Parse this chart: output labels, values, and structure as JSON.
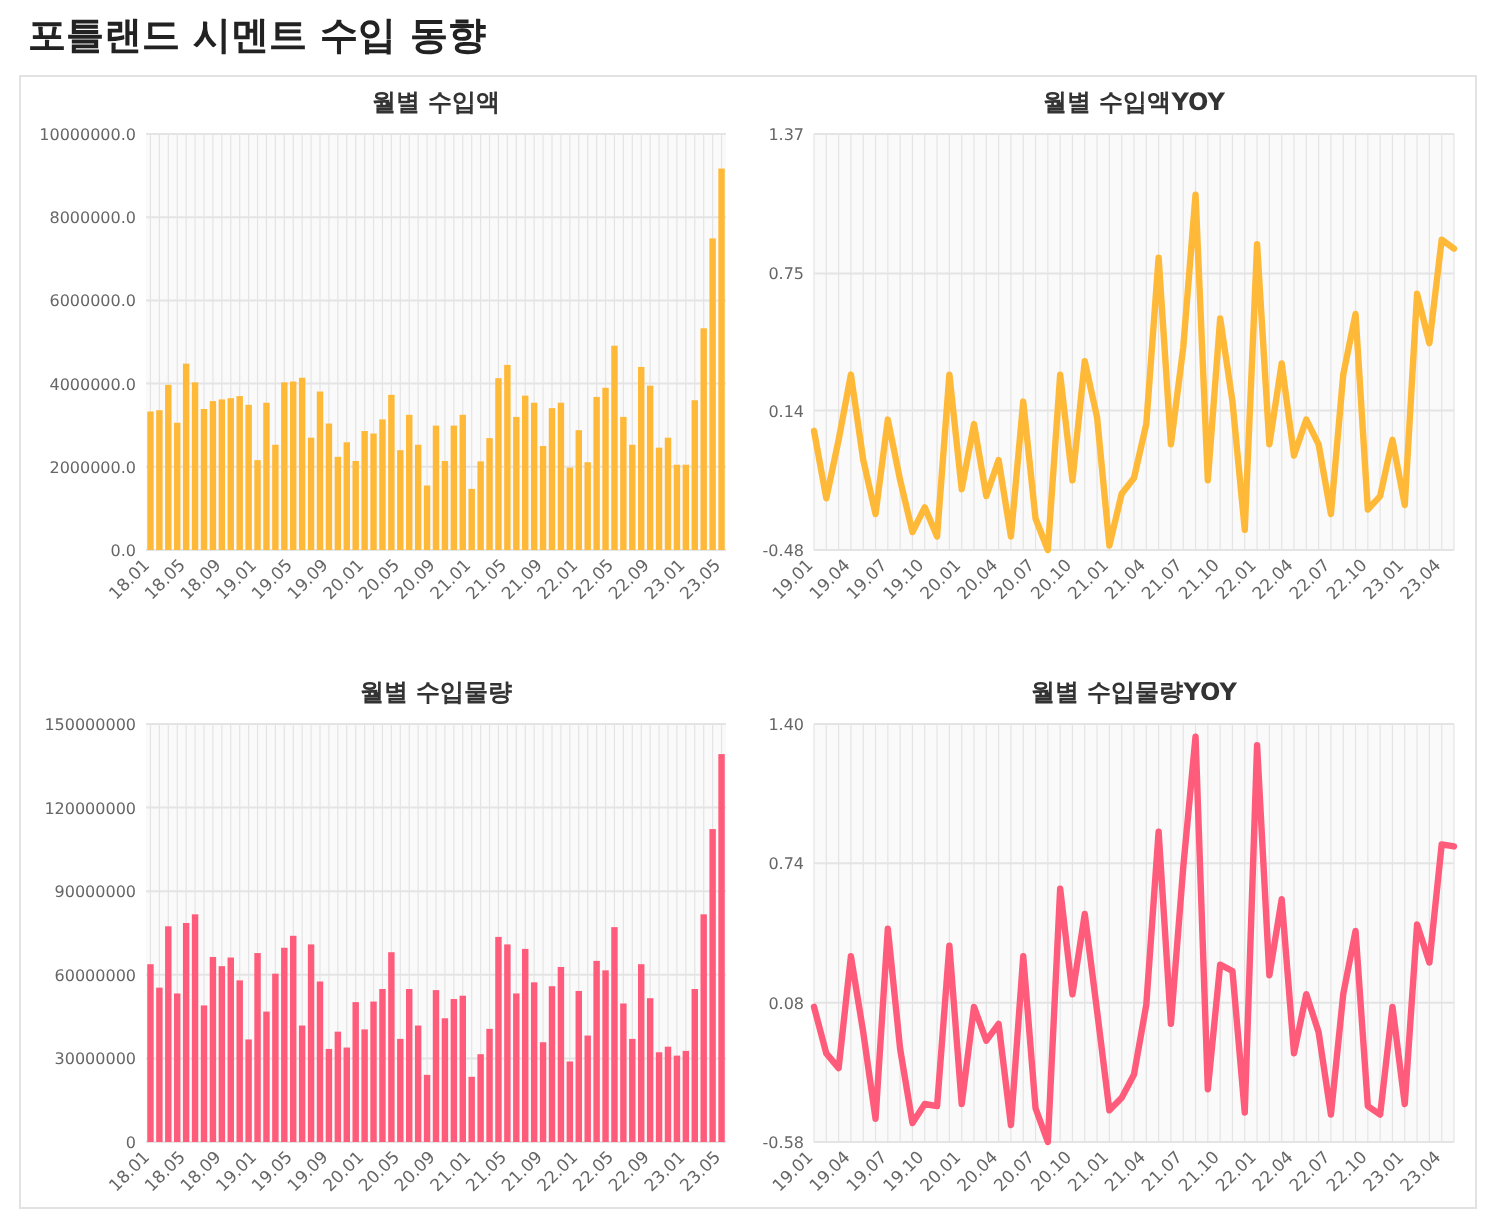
{
  "chart_data": [
    {
      "type": "other",
      "title": "포틀랜드 시멘트 수입 동향"
    },
    {
      "type": "bar",
      "title": "월별 수입액",
      "color": "#ffb939",
      "grid": true,
      "categories": [
        "18.01",
        null,
        null,
        null,
        "18.05",
        null,
        null,
        null,
        "18.09",
        null,
        null,
        null,
        "19.01",
        null,
        null,
        null,
        "19.05",
        null,
        null,
        null,
        "19.09",
        null,
        null,
        null,
        "20.01",
        null,
        null,
        null,
        "20.05",
        null,
        null,
        null,
        "20.09",
        null,
        null,
        null,
        "21.01",
        null,
        null,
        null,
        "21.05",
        null,
        null,
        null,
        "21.09",
        null,
        null,
        null,
        "22.01",
        null,
        null,
        null,
        "22.05",
        null,
        null,
        null,
        "22.09",
        null,
        null,
        null,
        "23.01",
        null,
        null,
        null,
        "23.05"
      ],
      "values": [
        3330000,
        3360000,
        3970000,
        3060000,
        4480000,
        4030000,
        3390000,
        3580000,
        3620000,
        3650000,
        3700000,
        3490000,
        2160000,
        3540000,
        2530000,
        4030000,
        4050000,
        4140000,
        2700000,
        3810000,
        3040000,
        2240000,
        2590000,
        2140000,
        2860000,
        2800000,
        3140000,
        3730000,
        2400000,
        3250000,
        2530000,
        1550000,
        2990000,
        2140000,
        2990000,
        3250000,
        1470000,
        2130000,
        2690000,
        4130000,
        4450000,
        3200000,
        3710000,
        3540000,
        2500000,
        3410000,
        3540000,
        1980000,
        2880000,
        2110000,
        3680000,
        3900000,
        4910000,
        3200000,
        2530000,
        4400000,
        3950000,
        2460000,
        2700000,
        2050000,
        2050000,
        3600000,
        5330000,
        7490000,
        9170000
      ],
      "ylim": [
        0,
        10000000
      ],
      "yticks": [
        {
          "value": 0,
          "label": "0.0"
        },
        {
          "value": 2000000,
          "label": "2000000.0"
        },
        {
          "value": 4000000,
          "label": "4000000.0"
        },
        {
          "value": 6000000,
          "label": "6000000.0"
        },
        {
          "value": 8000000,
          "label": "8000000.0"
        },
        {
          "value": 10000000,
          "label": "10000000.0"
        }
      ]
    },
    {
      "type": "line",
      "title": "월별 수입액YOY",
      "color": "#ffb939",
      "grid": true,
      "categories": [
        "19.01",
        null,
        null,
        "19.04",
        null,
        null,
        "19.07",
        null,
        null,
        "19.10",
        null,
        null,
        "20.01",
        null,
        null,
        "20.04",
        null,
        null,
        "20.07",
        null,
        null,
        "20.10",
        null,
        null,
        "21.01",
        null,
        null,
        "21.04",
        null,
        null,
        "21.07",
        null,
        null,
        "21.10",
        null,
        null,
        "22.01",
        null,
        null,
        "22.04",
        null,
        null,
        "22.07",
        null,
        null,
        "22.10",
        null,
        null,
        "23.01",
        null,
        null,
        "23.04",
        null
      ],
      "values": [
        0.05,
        -0.25,
        0.01,
        0.3,
        -0.08,
        -0.32,
        0.1,
        -0.17,
        -0.4,
        -0.29,
        -0.42,
        0.3,
        -0.21,
        0.08,
        -0.24,
        -0.08,
        -0.42,
        0.18,
        -0.34,
        -0.48,
        0.3,
        -0.17,
        0.36,
        0.11,
        -0.46,
        -0.23,
        -0.16,
        0.08,
        0.82,
        -0.01,
        0.42,
        1.1,
        -0.17,
        0.55,
        0.18,
        -0.39,
        0.88,
        -0.01,
        0.35,
        -0.06,
        0.1,
        -0.01,
        -0.32,
        0.3,
        0.57,
        -0.3,
        -0.24,
        0.01,
        -0.28,
        0.66,
        0.44,
        0.9,
        0.86
      ],
      "ylim": [
        -0.48,
        1.37
      ],
      "yticks": [
        -0.48,
        0.14,
        0.75,
        1.37
      ]
    },
    {
      "type": "bar",
      "title": "월별 수입물량",
      "color": "#ff5b7a",
      "grid": true,
      "categories": [
        "18.01",
        null,
        null,
        null,
        "18.05",
        null,
        null,
        null,
        "18.09",
        null,
        null,
        null,
        "19.01",
        null,
        null,
        null,
        "19.05",
        null,
        null,
        null,
        "19.09",
        null,
        null,
        null,
        "20.01",
        null,
        null,
        null,
        "20.05",
        null,
        null,
        null,
        "20.09",
        null,
        null,
        null,
        "21.01",
        null,
        null,
        null,
        "21.05",
        null,
        null,
        null,
        "21.09",
        null,
        null,
        null,
        "22.01",
        null,
        null,
        null,
        "22.05",
        null,
        null,
        null,
        "22.09",
        null,
        null,
        null,
        "23.01",
        null,
        null,
        null,
        "23.05"
      ],
      "values": [
        63800000,
        55400000,
        77400000,
        53300000,
        78600000,
        81700000,
        49000000,
        66400000,
        63100000,
        66200000,
        58000000,
        36800000,
        67800000,
        46800000,
        60400000,
        69700000,
        74000000,
        41800000,
        70900000,
        57600000,
        33400000,
        39600000,
        33900000,
        50200000,
        40400000,
        50400000,
        54900000,
        68100000,
        37000000,
        54900000,
        41800000,
        24100000,
        54500000,
        44400000,
        51300000,
        52500000,
        23400000,
        31500000,
        40600000,
        73600000,
        70900000,
        53300000,
        69300000,
        57300000,
        35800000,
        55900000,
        62800000,
        28900000,
        54200000,
        38200000,
        65000000,
        61600000,
        77100000,
        49700000,
        37000000,
        63800000,
        51600000,
        32200000,
        34200000,
        31000000,
        32700000,
        54900000,
        81700000,
        112300000,
        139200000
      ],
      "ylim": [
        0,
        150000000
      ],
      "yticks": [
        0,
        30000000,
        60000000,
        90000000,
        120000000,
        150000000
      ]
    },
    {
      "type": "line",
      "title": "월별 수입물량YOY",
      "color": "#ff5b7a",
      "grid": true,
      "categories": [
        "19.01",
        null,
        null,
        "19.04",
        null,
        null,
        "19.07",
        null,
        null,
        "19.10",
        null,
        null,
        "20.01",
        null,
        null,
        "20.04",
        null,
        null,
        "20.07",
        null,
        null,
        "20.10",
        null,
        null,
        "21.01",
        null,
        null,
        "21.04",
        null,
        null,
        "21.07",
        null,
        null,
        "21.10",
        null,
        null,
        "22.01",
        null,
        null,
        "22.04",
        null,
        null,
        "22.07",
        null,
        null,
        "22.10",
        null,
        null,
        "23.01",
        null,
        null,
        "23.04",
        null
      ],
      "values": [
        0.06,
        -0.16,
        -0.23,
        0.3,
        -0.06,
        -0.47,
        0.43,
        -0.14,
        -0.49,
        -0.4,
        -0.41,
        0.35,
        -0.4,
        0.06,
        -0.1,
        -0.02,
        -0.5,
        0.3,
        -0.42,
        -0.58,
        0.62,
        0.12,
        0.5,
        0.04,
        -0.43,
        -0.37,
        -0.26,
        0.07,
        0.89,
        -0.02,
        0.72,
        1.34,
        -0.33,
        0.26,
        0.23,
        -0.44,
        1.3,
        0.21,
        0.57,
        -0.16,
        0.12,
        -0.06,
        -0.45,
        0.12,
        0.42,
        -0.41,
        -0.45,
        0.06,
        -0.4,
        0.45,
        0.27,
        0.83,
        0.82
      ],
      "ylim": [
        -0.58,
        1.4
      ],
      "yticks": [
        -0.58,
        0.08,
        0.74,
        {
          "value": 1.4,
          "label": "1.40"
        }
      ]
    }
  ]
}
